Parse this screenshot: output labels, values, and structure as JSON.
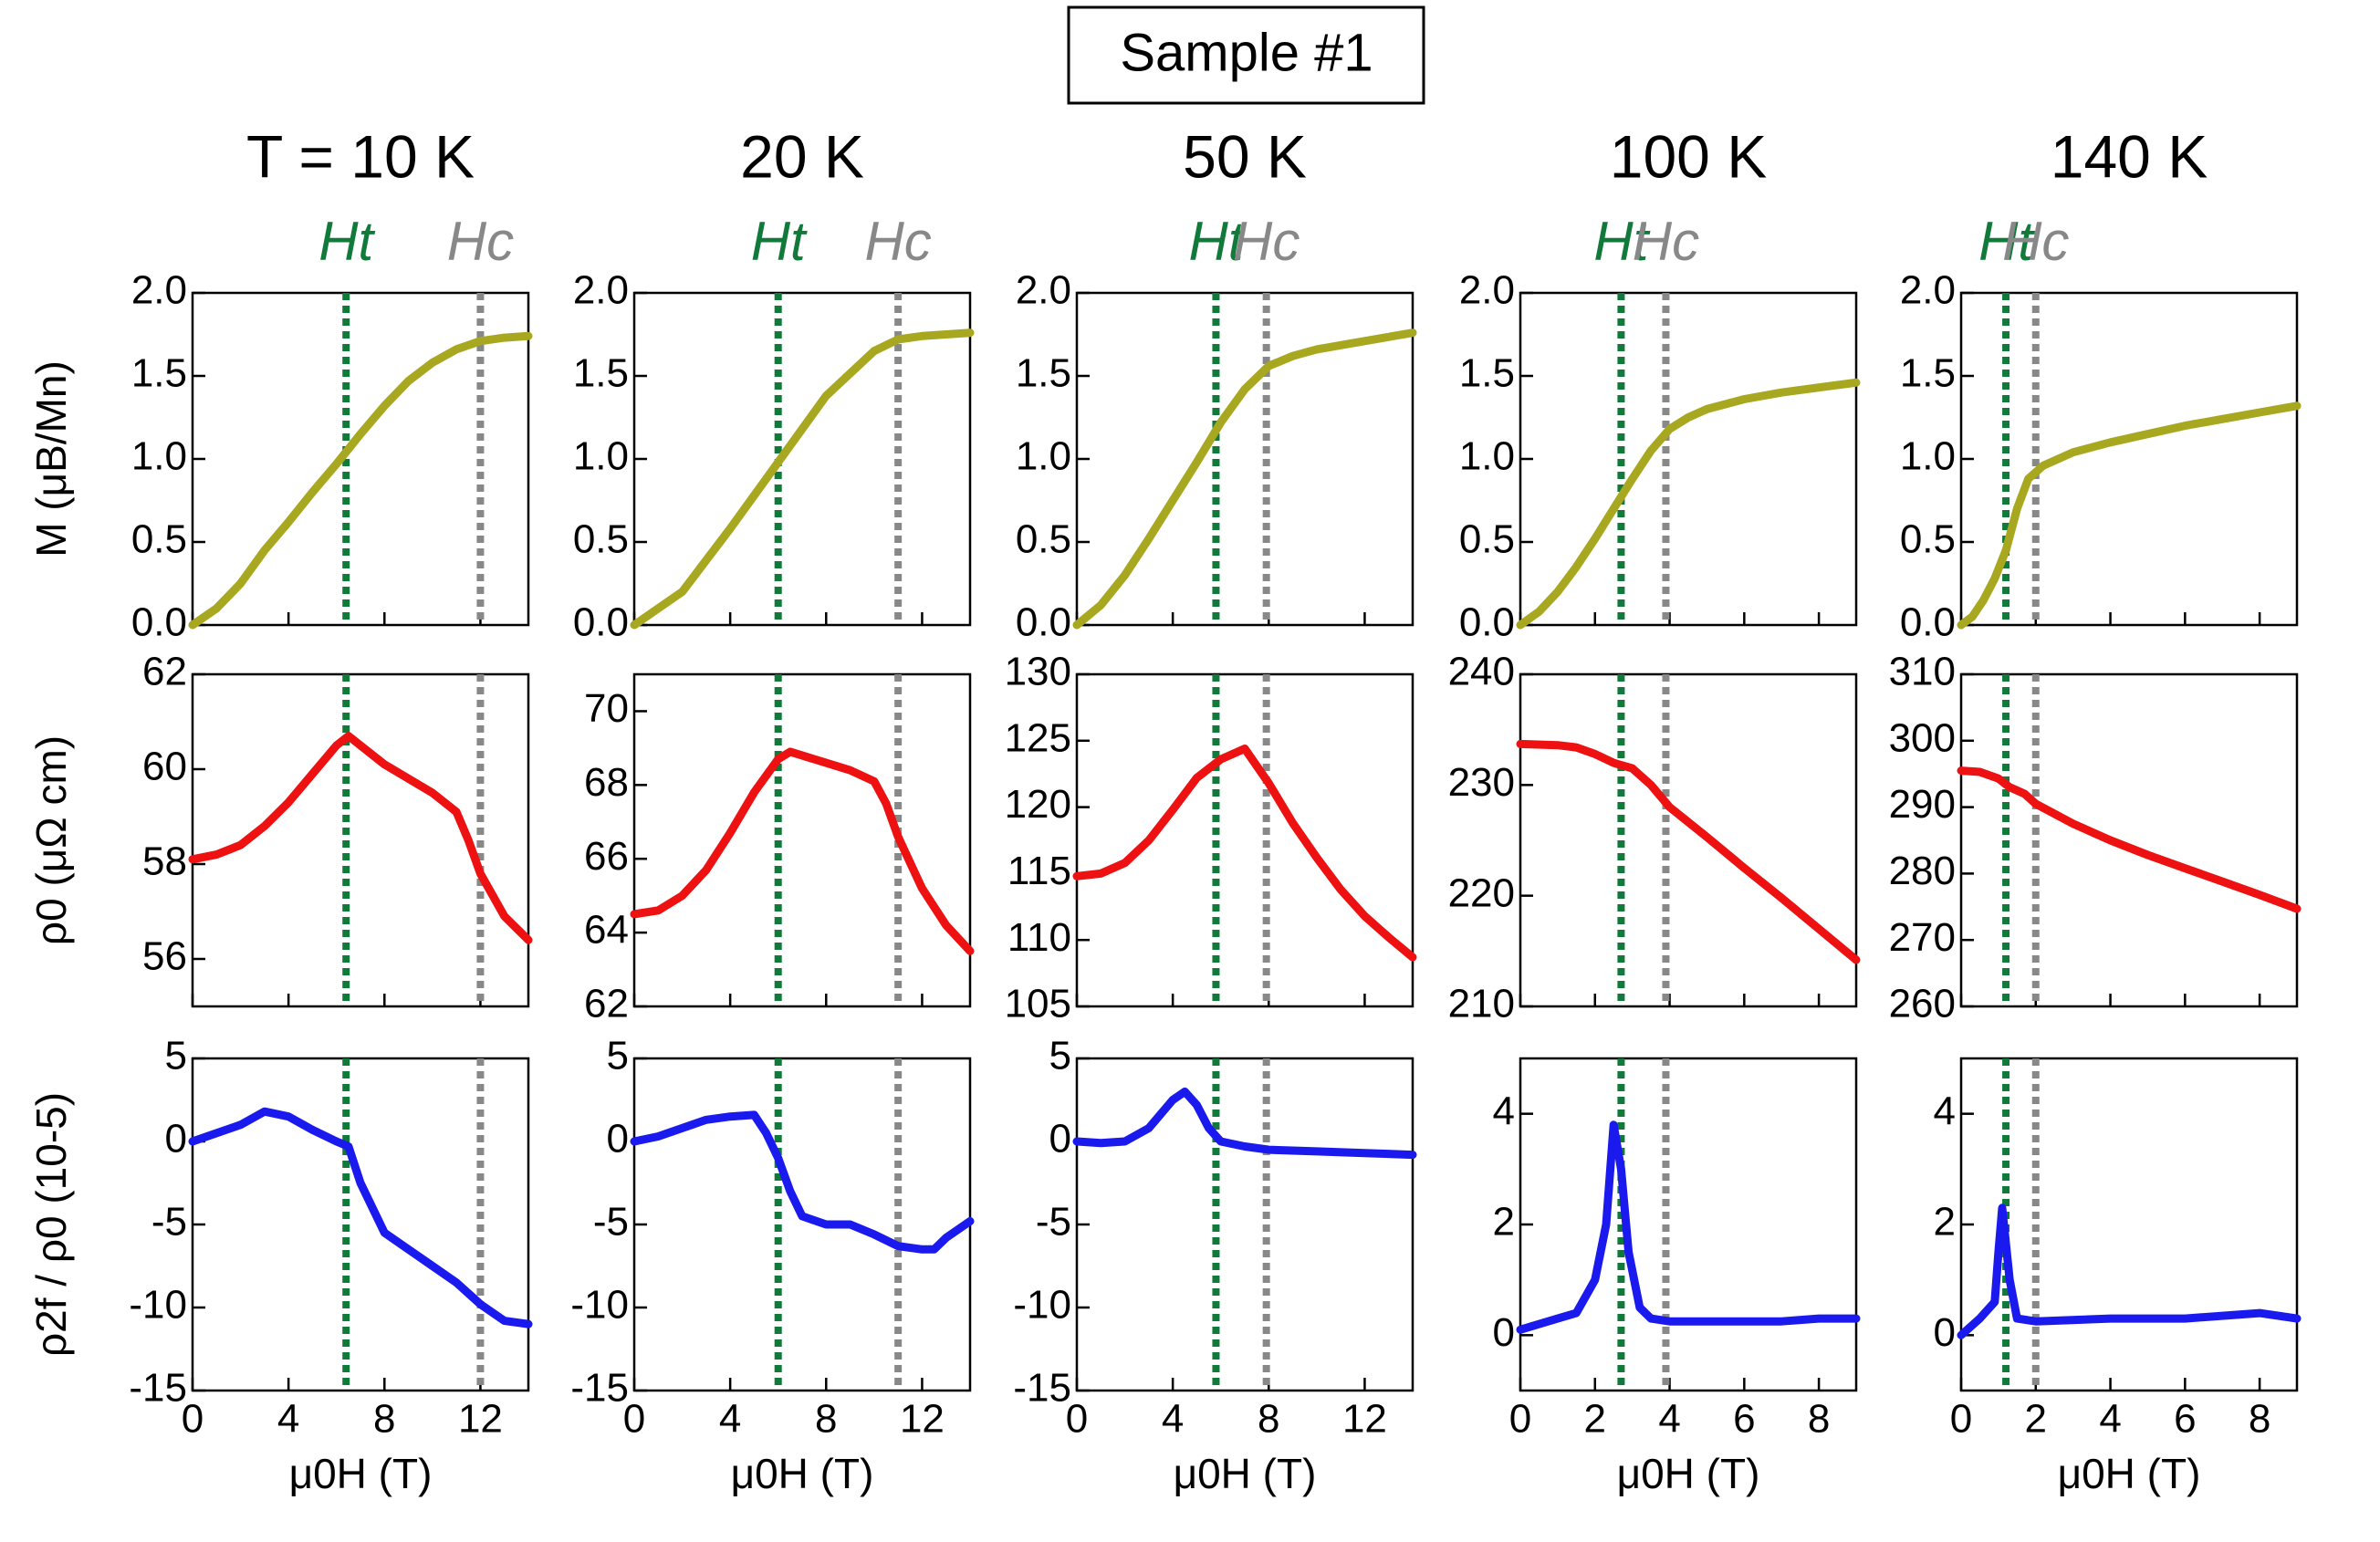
{
  "title": "Sample #1",
  "chart_data": [
    {
      "type": "line",
      "title": "T = 10 K",
      "xlim": [
        0,
        14
      ],
      "xticks": [
        0,
        4,
        8,
        12
      ],
      "ylim": [
        0,
        2
      ],
      "yticks": [
        {
          "value": 0,
          "label": "0.0"
        },
        0.5,
        {
          "value": 1,
          "label": "1.0"
        },
        1.5,
        {
          "value": 2,
          "label": "2.0"
        }
      ],
      "ylabel": "M (μB/Mn)",
      "markers": [
        {
          "label": "Ht",
          "x": 6.4,
          "color": "#117a3a"
        },
        {
          "label": "Hc",
          "x": 12,
          "color": "#888888"
        }
      ],
      "x": [
        0,
        1,
        2,
        3,
        4,
        5,
        6,
        7,
        8,
        9,
        10,
        11,
        12,
        13,
        14
      ],
      "series": [
        {
          "color": "#a8a820",
          "values": [
            0,
            0.1,
            0.25,
            0.45,
            0.62,
            0.8,
            0.97,
            1.15,
            1.32,
            1.47,
            1.58,
            1.66,
            1.71,
            1.73,
            1.74
          ]
        }
      ]
    },
    {
      "type": "line",
      "title": "20 K",
      "xlim": [
        0,
        14
      ],
      "xticks": [
        0,
        4,
        8,
        12
      ],
      "ylim": [
        0,
        2
      ],
      "yticks": [
        {
          "value": 0,
          "label": "0.0"
        },
        0.5,
        {
          "value": 1,
          "label": "1.0"
        },
        1.5,
        {
          "value": 2,
          "label": "2.0"
        }
      ],
      "markers": [
        {
          "label": "Ht",
          "x": 6,
          "color": "#117a3a"
        },
        {
          "label": "Hc",
          "x": 11,
          "color": "#888888"
        }
      ],
      "x": [
        0,
        2,
        4,
        6,
        8,
        10,
        11,
        12,
        14
      ],
      "series": [
        {
          "color": "#a8a820",
          "values": [
            0,
            0.2,
            0.58,
            0.98,
            1.38,
            1.65,
            1.72,
            1.74,
            1.76
          ]
        }
      ]
    },
    {
      "type": "line",
      "title": "50 K",
      "xlim": [
        0,
        14
      ],
      "xticks": [
        0,
        4,
        8,
        12
      ],
      "ylim": [
        0,
        2
      ],
      "yticks": [
        {
          "value": 0,
          "label": "0.0"
        },
        0.5,
        {
          "value": 1,
          "label": "1.0"
        },
        1.5,
        {
          "value": 2,
          "label": "2.0"
        }
      ],
      "markers": [
        {
          "label": "Ht",
          "x": 5.8,
          "color": "#117a3a"
        },
        {
          "label": "Hc",
          "x": 7.9,
          "color": "#888888"
        }
      ],
      "x": [
        0,
        1,
        2,
        3,
        4,
        5,
        6,
        7,
        8,
        9,
        10,
        12,
        14
      ],
      "series": [
        {
          "color": "#a8a820",
          "values": [
            0,
            0.12,
            0.3,
            0.52,
            0.75,
            0.98,
            1.22,
            1.42,
            1.56,
            1.62,
            1.66,
            1.71,
            1.76
          ]
        }
      ]
    },
    {
      "type": "line",
      "title": "100 K",
      "xlim": [
        0,
        9
      ],
      "xticks": [
        0,
        2,
        4,
        6,
        8
      ],
      "ylim": [
        0,
        2
      ],
      "yticks": [
        {
          "value": 0,
          "label": "0.0"
        },
        0.5,
        {
          "value": 1,
          "label": "1.0"
        },
        1.5,
        {
          "value": 2,
          "label": "2.0"
        }
      ],
      "markers": [
        {
          "label": "Ht",
          "x": 2.7,
          "color": "#117a3a"
        },
        {
          "label": "Hc",
          "x": 3.9,
          "color": "#888888"
        }
      ],
      "x": [
        0,
        0.5,
        1,
        1.5,
        2,
        2.5,
        3,
        3.5,
        4,
        4.5,
        5,
        6,
        7,
        8,
        9
      ],
      "series": [
        {
          "color": "#a8a820",
          "values": [
            0,
            0.08,
            0.2,
            0.35,
            0.52,
            0.7,
            0.88,
            1.05,
            1.18,
            1.25,
            1.3,
            1.36,
            1.4,
            1.43,
            1.46
          ]
        }
      ]
    },
    {
      "type": "line",
      "title": "140 K",
      "xlim": [
        0,
        9
      ],
      "xticks": [
        0,
        2,
        4,
        6,
        8
      ],
      "ylim": [
        0,
        2
      ],
      "yticks": [
        {
          "value": 0,
          "label": "0.0"
        },
        0.5,
        {
          "value": 1,
          "label": "1.0"
        },
        1.5,
        {
          "value": 2,
          "label": "2.0"
        }
      ],
      "markers": [
        {
          "label": "Ht",
          "x": 1.2,
          "color": "#117a3a"
        },
        {
          "label": "Hc",
          "x": 2,
          "color": "#888888"
        }
      ],
      "x": [
        0,
        0.3,
        0.6,
        0.9,
        1.2,
        1.5,
        1.8,
        2.2,
        3,
        4,
        5,
        6,
        7,
        8,
        9
      ],
      "series": [
        {
          "color": "#a8a820",
          "values": [
            0,
            0.05,
            0.15,
            0.28,
            0.45,
            0.7,
            0.88,
            0.96,
            1.04,
            1.1,
            1.15,
            1.2,
            1.24,
            1.28,
            1.32
          ]
        }
      ]
    },
    {
      "type": "line",
      "xlim": [
        0,
        14
      ],
      "xticks": [
        0,
        4,
        8,
        12
      ],
      "ylim": [
        55,
        62
      ],
      "yticks": [
        56,
        58,
        60,
        62
      ],
      "ylabel": "ρ0 (μΩ cm)",
      "markers": [
        {
          "x": 6.4,
          "color": "#117a3a"
        },
        {
          "x": 12,
          "color": "#888888"
        }
      ],
      "x": [
        0,
        1,
        2,
        3,
        4,
        5,
        6,
        6.5,
        7,
        8,
        9,
        10,
        11,
        11.5,
        12,
        13,
        14
      ],
      "series": [
        {
          "color": "#ee1111",
          "values": [
            58.1,
            58.2,
            58.4,
            58.8,
            59.3,
            59.9,
            60.5,
            60.7,
            60.5,
            60.1,
            59.8,
            59.5,
            59.1,
            58.5,
            57.8,
            56.9,
            56.4
          ]
        }
      ]
    },
    {
      "type": "line",
      "xlim": [
        0,
        14
      ],
      "xticks": [
        0,
        4,
        8,
        12
      ],
      "ylim": [
        62,
        71
      ],
      "yticks": [
        62,
        64,
        66,
        68,
        70
      ],
      "markers": [
        {
          "x": 6,
          "color": "#117a3a"
        },
        {
          "x": 11,
          "color": "#888888"
        }
      ],
      "x": [
        0,
        1,
        2,
        3,
        4,
        5,
        6,
        6.5,
        8,
        9,
        10,
        10.5,
        11,
        12,
        13,
        14
      ],
      "series": [
        {
          "color": "#ee1111",
          "values": [
            64.5,
            64.6,
            65,
            65.7,
            66.7,
            67.8,
            68.7,
            68.9,
            68.6,
            68.4,
            68.1,
            67.5,
            66.6,
            65.2,
            64.2,
            63.5
          ]
        }
      ]
    },
    {
      "type": "line",
      "xlim": [
        0,
        14
      ],
      "xticks": [
        0,
        4,
        8,
        12
      ],
      "ylim": [
        105,
        130
      ],
      "yticks": [
        105,
        110,
        115,
        120,
        125,
        130
      ],
      "markers": [
        {
          "x": 5.8,
          "color": "#117a3a"
        },
        {
          "x": 7.9,
          "color": "#888888"
        }
      ],
      "x": [
        0,
        1,
        2,
        3,
        4,
        5,
        6,
        7,
        8,
        9,
        10,
        11,
        12,
        13,
        14
      ],
      "series": [
        {
          "color": "#ee1111",
          "values": [
            114.8,
            115,
            115.8,
            117.5,
            119.8,
            122.2,
            123.6,
            124.4,
            121.8,
            118.8,
            116.2,
            113.8,
            111.8,
            110.2,
            108.7
          ]
        }
      ]
    },
    {
      "type": "line",
      "xlim": [
        0,
        9
      ],
      "xticks": [
        0,
        2,
        4,
        6,
        8
      ],
      "ylim": [
        210,
        240
      ],
      "yticks": [
        210,
        220,
        230,
        240
      ],
      "markers": [
        {
          "x": 2.7,
          "color": "#117a3a"
        },
        {
          "x": 3.9,
          "color": "#888888"
        }
      ],
      "x": [
        0,
        1,
        1.5,
        2,
        2.5,
        3,
        3.5,
        4,
        5,
        6,
        7,
        8,
        9
      ],
      "series": [
        {
          "color": "#ee1111",
          "values": [
            233.7,
            233.6,
            233.4,
            232.8,
            232,
            231.5,
            230,
            228,
            225.3,
            222.5,
            219.8,
            217,
            214.2
          ]
        }
      ]
    },
    {
      "type": "line",
      "xlim": [
        0,
        9
      ],
      "xticks": [
        0,
        2,
        4,
        6,
        8
      ],
      "ylim": [
        260,
        310
      ],
      "yticks": [
        260,
        270,
        280,
        290,
        300,
        310
      ],
      "markers": [
        {
          "x": 1.2,
          "color": "#117a3a"
        },
        {
          "x": 2,
          "color": "#888888"
        }
      ],
      "x": [
        0,
        0.5,
        1,
        1.3,
        1.7,
        2,
        3,
        4,
        5,
        6,
        7,
        8,
        9
      ],
      "series": [
        {
          "color": "#ee1111",
          "values": [
            295.5,
            295.3,
            294.3,
            293,
            292,
            290.5,
            287.5,
            285,
            282.8,
            280.8,
            278.8,
            276.8,
            274.7
          ]
        }
      ]
    },
    {
      "type": "line",
      "xlim": [
        0,
        14
      ],
      "xticks": [
        0,
        4,
        8,
        12
      ],
      "ylim": [
        -15,
        5
      ],
      "yticks": [
        -15,
        -10,
        -5,
        0,
        5
      ],
      "ylabel": "ρ2f / ρ0 (10-5)",
      "xlabel": "μ0H (T)",
      "markers": [
        {
          "x": 6.4,
          "color": "#117a3a"
        },
        {
          "x": 12,
          "color": "#888888"
        }
      ],
      "x": [
        0,
        1,
        2,
        3,
        4,
        5,
        6,
        6.5,
        7,
        8,
        9,
        10,
        11,
        12,
        13,
        14
      ],
      "series": [
        {
          "color": "#1a1aee",
          "values": [
            0,
            0.5,
            1,
            1.8,
            1.5,
            0.7,
            0,
            -0.3,
            -2.5,
            -5.5,
            -6.5,
            -7.5,
            -8.5,
            -9.8,
            -10.8,
            -11
          ]
        }
      ]
    },
    {
      "type": "line",
      "xlim": [
        0,
        14
      ],
      "xticks": [
        0,
        4,
        8,
        12
      ],
      "ylim": [
        -15,
        5
      ],
      "yticks": [
        -15,
        -10,
        -5,
        0,
        5
      ],
      "xlabel": "μ0H (T)",
      "markers": [
        {
          "x": 6,
          "color": "#117a3a"
        },
        {
          "x": 11,
          "color": "#888888"
        }
      ],
      "x": [
        0,
        1,
        2,
        3,
        4,
        5,
        5.5,
        6,
        6.5,
        7,
        8,
        9,
        10,
        11,
        12,
        12.5,
        13,
        14
      ],
      "series": [
        {
          "color": "#1a1aee",
          "values": [
            0,
            0.3,
            0.8,
            1.3,
            1.5,
            1.6,
            0.5,
            -1,
            -3,
            -4.5,
            -5,
            -5,
            -5.6,
            -6.3,
            -6.5,
            -6.5,
            -5.8,
            -4.8
          ]
        }
      ]
    },
    {
      "type": "line",
      "xlim": [
        0,
        14
      ],
      "xticks": [
        0,
        4,
        8,
        12
      ],
      "ylim": [
        -15,
        5
      ],
      "yticks": [
        -15,
        -10,
        -5,
        0,
        5
      ],
      "xlabel": "μ0H (T)",
      "markers": [
        {
          "x": 5.8,
          "color": "#117a3a"
        },
        {
          "x": 7.9,
          "color": "#888888"
        }
      ],
      "x": [
        0,
        1,
        2,
        3,
        4,
        4.5,
        5,
        5.5,
        6,
        7,
        8,
        10,
        12,
        14
      ],
      "series": [
        {
          "color": "#1a1aee",
          "values": [
            0,
            -0.1,
            0,
            0.8,
            2.5,
            3,
            2.2,
            0.8,
            0,
            -0.3,
            -0.5,
            -0.6,
            -0.7,
            -0.8
          ]
        }
      ]
    },
    {
      "type": "line",
      "xlim": [
        0,
        9
      ],
      "xticks": [
        0,
        2,
        4,
        6,
        8
      ],
      "ylim": [
        -1,
        5
      ],
      "yticks": [
        0,
        2,
        4
      ],
      "xlabel": "μ0H (T)",
      "markers": [
        {
          "x": 2.7,
          "color": "#117a3a"
        },
        {
          "x": 3.9,
          "color": "#888888"
        }
      ],
      "x": [
        0,
        0.5,
        1,
        1.5,
        2,
        2.3,
        2.5,
        2.7,
        2.9,
        3.2,
        3.5,
        4,
        5,
        6,
        7,
        8,
        9
      ],
      "series": [
        {
          "color": "#1a1aee",
          "values": [
            0.1,
            0.2,
            0.3,
            0.4,
            1,
            2,
            3.8,
            3,
            1.5,
            0.5,
            0.3,
            0.25,
            0.25,
            0.25,
            0.25,
            0.3,
            0.3
          ]
        }
      ]
    },
    {
      "type": "line",
      "xlim": [
        0,
        9
      ],
      "xticks": [
        0,
        2,
        4,
        6,
        8
      ],
      "ylim": [
        -1,
        5
      ],
      "yticks": [
        0,
        2,
        4
      ],
      "xlabel": "μ0H (T)",
      "markers": [
        {
          "x": 1.2,
          "color": "#117a3a"
        },
        {
          "x": 2,
          "color": "#888888"
        }
      ],
      "x": [
        0,
        0.5,
        0.9,
        1,
        1.1,
        1.3,
        1.5,
        2,
        4,
        6,
        8,
        9
      ],
      "series": [
        {
          "color": "#1a1aee",
          "values": [
            0,
            0.3,
            0.6,
            1.5,
            2.3,
            1,
            0.3,
            0.25,
            0.3,
            0.3,
            0.4,
            0.3
          ]
        }
      ]
    }
  ]
}
